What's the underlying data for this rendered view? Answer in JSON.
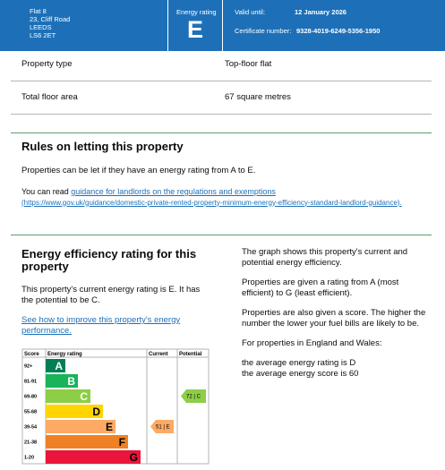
{
  "header": {
    "address": [
      "Flat 8",
      "23, Cliff Road",
      "LEEDS",
      "LS6 2ET"
    ],
    "rating_label": "Energy rating",
    "rating": "E",
    "valid_label": "Valid until:",
    "valid_date": "12 January 2026",
    "certificate_label": "Certificate number:",
    "certificate_number": "9328-4019-6249-5356-1950"
  },
  "details": {
    "rows": [
      [
        "Property type",
        "Top-floor flat"
      ],
      [
        "Total floor area",
        "67 square metres"
      ]
    ]
  },
  "letting": {
    "title": "Rules on letting this property",
    "paragraph": "Properties can be let if they have an energy rating from A to E.",
    "read_prefix": "You can read ",
    "link": "guidance for landlords on the regulations and exemptions",
    "url": "(https://www.gov.uk/guidance/domestic-private-rented-property-minimum-energy-efficiency-standard-landlord-guidance)."
  },
  "efficiency": {
    "title": "Energy efficiency rating for this property",
    "paragraph": "This property's current energy rating is E. It has the potential to be C.",
    "link": "See how to improve this property's energy performance.",
    "right": [
      "The graph shows this property's current and potential energy efficiency.",
      "Properties are given a rating from A (most efficient) to G (least efficient).",
      "Properties are also given a score. The higher the number the lower your fuel bills are likely to be.",
      "For properties in England and Wales:"
    ],
    "averages": [
      "the average energy rating is D",
      "the average energy score is 60"
    ]
  },
  "rating_chart": {
    "headers": [
      "Score",
      "Energy rating",
      "Current",
      "Potential"
    ],
    "bands": [
      {
        "label": "92+",
        "min": 92,
        "letter": "A",
        "color": "#008054"
      },
      {
        "label": "81-91",
        "min": 81,
        "max": 91,
        "letter": "B",
        "color": "#19b459"
      },
      {
        "label": "69-80",
        "min": 69,
        "max": 80,
        "letter": "C",
        "color": "#8dce46"
      },
      {
        "label": "55-68",
        "min": 55,
        "max": 68,
        "letter": "D",
        "color": "#ffd500"
      },
      {
        "label": "39-54",
        "min": 39,
        "max": 54,
        "letter": "E",
        "color": "#fcaa65"
      },
      {
        "label": "21-38",
        "min": 21,
        "max": 38,
        "letter": "F",
        "color": "#ef8023"
      },
      {
        "label": "1-20",
        "min": 1,
        "max": 20,
        "letter": "G",
        "color": "#e9153b"
      }
    ],
    "current": {
      "label": "51 | E",
      "score": 51
    },
    "potential": {
      "label": "72 | C",
      "score": 72
    }
  }
}
